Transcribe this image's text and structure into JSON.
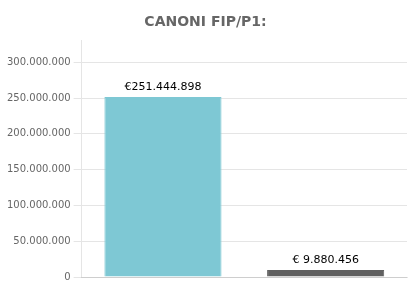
{
  "chart_data": {
    "type": "bar",
    "title": "CANONI FIP/P1:",
    "categories": [
      null,
      null
    ],
    "values": [
      251444898,
      9880456
    ],
    "value_labels": [
      "€251.444.898",
      "€ 9.880.456"
    ],
    "data_labels": true,
    "colors": [
      "#7EC8D4",
      "#606060"
    ],
    "ylim": [
      0,
      330000000
    ],
    "yticks": [
      0,
      {
        "value": 50000000,
        "label": "50.000.000"
      },
      {
        "value": 100000000,
        "label": "100.000.000"
      },
      {
        "value": 150000000,
        "label": "150.000.000"
      },
      {
        "value": 200000000,
        "label": "200.000.000"
      },
      {
        "value": 250000000,
        "label": "250.000.000"
      },
      {
        "value": 300000000,
        "label": "300.000.000"
      }
    ],
    "grid": true,
    "tick_labels": "y"
  }
}
